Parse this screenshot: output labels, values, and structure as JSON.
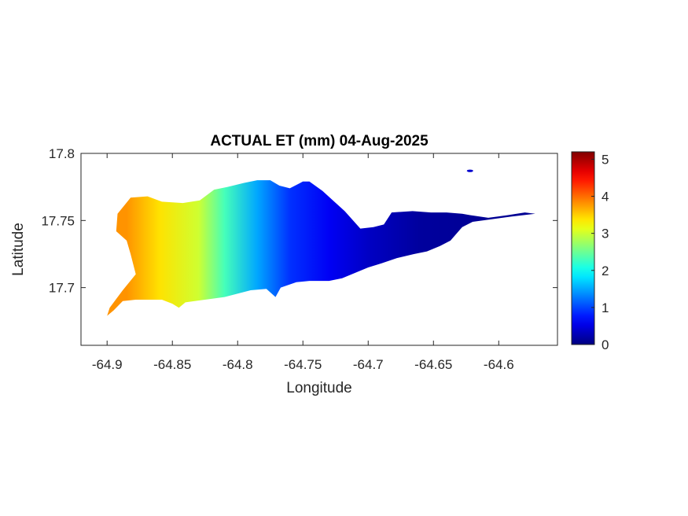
{
  "chart_data": {
    "type": "heatmap",
    "title": "ACTUAL ET (mm) 04-Aug-2025",
    "xlabel": "Longitude",
    "ylabel": "Latitude",
    "xlim": [
      -64.92,
      -64.555
    ],
    "ylim": [
      17.657,
      17.8
    ],
    "x_ticks": [
      -64.9,
      -64.85,
      -64.8,
      -64.75,
      -64.7,
      -64.65,
      -64.6
    ],
    "x_tick_labels": [
      "-64.9",
      "-64.85",
      "-64.8",
      "-64.75",
      "-64.7",
      "-64.65",
      "-64.6"
    ],
    "y_ticks": [
      17.7,
      17.75,
      17.8
    ],
    "y_tick_labels": [
      "17.7",
      "17.75",
      "17.8"
    ],
    "colorbar": {
      "colormap": "jet",
      "range": [
        0,
        5.2
      ],
      "ticks": [
        0,
        1,
        2,
        3,
        4,
        5
      ],
      "tick_labels": [
        "0",
        "1",
        "2",
        "3",
        "4",
        "5"
      ]
    },
    "island_outline": [
      [
        -64.9,
        17.679
      ],
      [
        -64.895,
        17.683
      ],
      [
        -64.888,
        17.69
      ],
      [
        -64.878,
        17.691
      ],
      [
        -64.868,
        17.691
      ],
      [
        -64.858,
        17.691
      ],
      [
        -64.85,
        17.688
      ],
      [
        -64.845,
        17.685
      ],
      [
        -64.84,
        17.689
      ],
      [
        -64.825,
        17.691
      ],
      [
        -64.81,
        17.693
      ],
      [
        -64.79,
        17.698
      ],
      [
        -64.778,
        17.699
      ],
      [
        -64.771,
        17.693
      ],
      [
        -64.767,
        17.7
      ],
      [
        -64.755,
        17.704
      ],
      [
        -64.745,
        17.705
      ],
      [
        -64.73,
        17.705
      ],
      [
        -64.72,
        17.707
      ],
      [
        -64.71,
        17.711
      ],
      [
        -64.7,
        17.715
      ],
      [
        -64.69,
        17.718
      ],
      [
        -64.678,
        17.722
      ],
      [
        -64.665,
        17.725
      ],
      [
        -64.655,
        17.727
      ],
      [
        -64.645,
        17.731
      ],
      [
        -64.637,
        17.735
      ],
      [
        -64.628,
        17.745
      ],
      [
        -64.62,
        17.749
      ],
      [
        -64.605,
        17.751
      ],
      [
        -64.59,
        17.753
      ],
      [
        -64.572,
        17.755
      ],
      [
        -64.58,
        17.756
      ],
      [
        -64.593,
        17.754
      ],
      [
        -64.608,
        17.752
      ],
      [
        -64.622,
        17.754
      ],
      [
        -64.628,
        17.755
      ],
      [
        -64.64,
        17.756
      ],
      [
        -64.652,
        17.756
      ],
      [
        -64.666,
        17.757
      ],
      [
        -64.682,
        17.756
      ],
      [
        -64.688,
        17.747
      ],
      [
        -64.696,
        17.745
      ],
      [
        -64.706,
        17.744
      ],
      [
        -64.718,
        17.757
      ],
      [
        -64.735,
        17.772
      ],
      [
        -64.745,
        17.779
      ],
      [
        -64.75,
        17.779
      ],
      [
        -64.76,
        17.774
      ],
      [
        -64.768,
        17.776
      ],
      [
        -64.775,
        17.78
      ],
      [
        -64.785,
        17.78
      ],
      [
        -64.795,
        17.778
      ],
      [
        -64.808,
        17.775
      ],
      [
        -64.818,
        17.773
      ],
      [
        -64.829,
        17.765
      ],
      [
        -64.842,
        17.763
      ],
      [
        -64.858,
        17.764
      ],
      [
        -64.869,
        17.768
      ],
      [
        -64.882,
        17.767
      ],
      [
        -64.892,
        17.755
      ],
      [
        -64.893,
        17.742
      ],
      [
        -64.885,
        17.735
      ],
      [
        -64.882,
        17.725
      ],
      [
        -64.878,
        17.71
      ],
      [
        -64.888,
        17.698
      ],
      [
        -64.898,
        17.685
      ]
    ],
    "small_islet": [
      -64.622,
      17.787
    ],
    "gradient_stops": [
      {
        "lon": -64.885,
        "et": 3.8
      },
      {
        "lon": -64.86,
        "et": 3.4
      },
      {
        "lon": -64.83,
        "et": 3.0
      },
      {
        "lon": -64.81,
        "et": 2.3
      },
      {
        "lon": -64.785,
        "et": 1.5
      },
      {
        "lon": -64.76,
        "et": 0.9
      },
      {
        "lon": -64.73,
        "et": 0.6
      },
      {
        "lon": -64.7,
        "et": 0.35
      },
      {
        "lon": -64.66,
        "et": 0.15
      },
      {
        "lon": -64.6,
        "et": 0.1
      }
    ]
  }
}
